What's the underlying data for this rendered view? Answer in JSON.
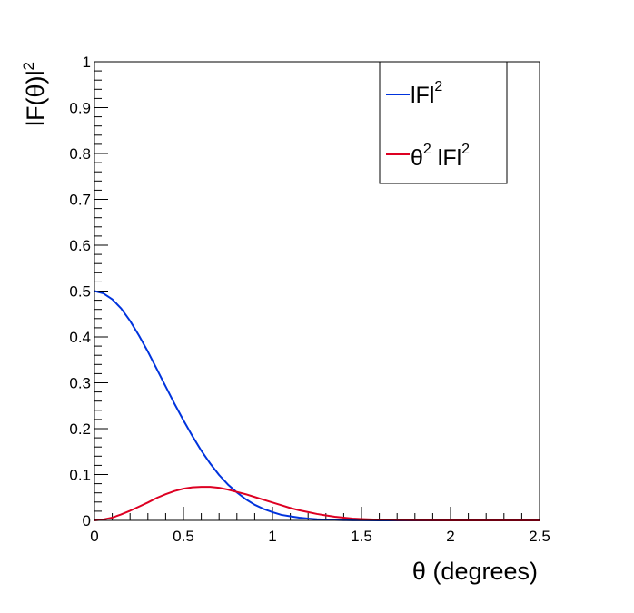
{
  "chart_data": {
    "type": "line",
    "xlabel": "θ (degrees)",
    "ylabel": {
      "base": "lF(θ)l",
      "sup": "2"
    },
    "xlim": [
      0,
      2.5
    ],
    "ylim": [
      0,
      1
    ],
    "x_ticks": [
      {
        "value": 0,
        "label": "0"
      },
      {
        "value": 0.5,
        "label": "0.5"
      },
      {
        "value": 1,
        "label": "1"
      },
      {
        "value": 1.5,
        "label": "1.5"
      },
      {
        "value": 2,
        "label": "2"
      },
      {
        "value": 2.5,
        "label": "2.5"
      }
    ],
    "y_ticks": [
      {
        "value": 0,
        "label": "0"
      },
      {
        "value": 0.1,
        "label": "0.1"
      },
      {
        "value": 0.2,
        "label": "0.2"
      },
      {
        "value": 0.3,
        "label": "0.3"
      },
      {
        "value": 0.4,
        "label": "0.4"
      },
      {
        "value": 0.5,
        "label": "0.5"
      },
      {
        "value": 0.6,
        "label": "0.6"
      },
      {
        "value": 0.7,
        "label": "0.7"
      },
      {
        "value": 0.8,
        "label": "0.8"
      },
      {
        "value": 0.9,
        "label": "0.9"
      },
      {
        "value": 1,
        "label": "1"
      }
    ],
    "grid": false,
    "legend_position": "top-right",
    "series": [
      {
        "name": "lFl",
        "name_sup": "2",
        "color": "#0033dd",
        "x": [
          0,
          0.05,
          0.1,
          0.15,
          0.2,
          0.25,
          0.3,
          0.35,
          0.4,
          0.45,
          0.5,
          0.55,
          0.6,
          0.65,
          0.7,
          0.75,
          0.8,
          0.85,
          0.9,
          0.95,
          1.0,
          1.05,
          1.1,
          1.15,
          1.2,
          1.25,
          1.3,
          1.35,
          1.4,
          1.45,
          1.5,
          1.6,
          1.7,
          1.8,
          2.0,
          2.5
        ],
        "y": [
          0.5,
          0.495,
          0.482,
          0.462,
          0.435,
          0.403,
          0.368,
          0.33,
          0.292,
          0.254,
          0.218,
          0.184,
          0.152,
          0.124,
          0.099,
          0.078,
          0.061,
          0.046,
          0.034,
          0.025,
          0.018,
          0.012,
          0.009,
          0.006,
          0.004,
          0.0025,
          0.0015,
          0.001,
          0.0006,
          0.0003,
          0.0002,
          0.0001,
          0,
          0,
          0,
          0
        ]
      },
      {
        "name": "θ",
        "name_sup": "2",
        "name_suffix": " lFl",
        "name_suffix_sup": "2",
        "color": "#dd0022",
        "x": [
          0,
          0.05,
          0.1,
          0.15,
          0.2,
          0.25,
          0.3,
          0.35,
          0.4,
          0.45,
          0.5,
          0.55,
          0.6,
          0.65,
          0.7,
          0.75,
          0.8,
          0.85,
          0.9,
          0.95,
          1.0,
          1.05,
          1.1,
          1.15,
          1.2,
          1.25,
          1.3,
          1.35,
          1.4,
          1.45,
          1.5,
          1.6,
          1.7,
          1.8,
          2.0,
          2.5
        ],
        "y": [
          0,
          0.002,
          0.006,
          0.013,
          0.021,
          0.03,
          0.039,
          0.049,
          0.057,
          0.064,
          0.069,
          0.072,
          0.073,
          0.073,
          0.071,
          0.067,
          0.062,
          0.057,
          0.051,
          0.045,
          0.039,
          0.033,
          0.027,
          0.022,
          0.018,
          0.014,
          0.011,
          0.008,
          0.006,
          0.004,
          0.003,
          0.0015,
          0.0005,
          0.0002,
          0,
          0
        ]
      }
    ]
  }
}
